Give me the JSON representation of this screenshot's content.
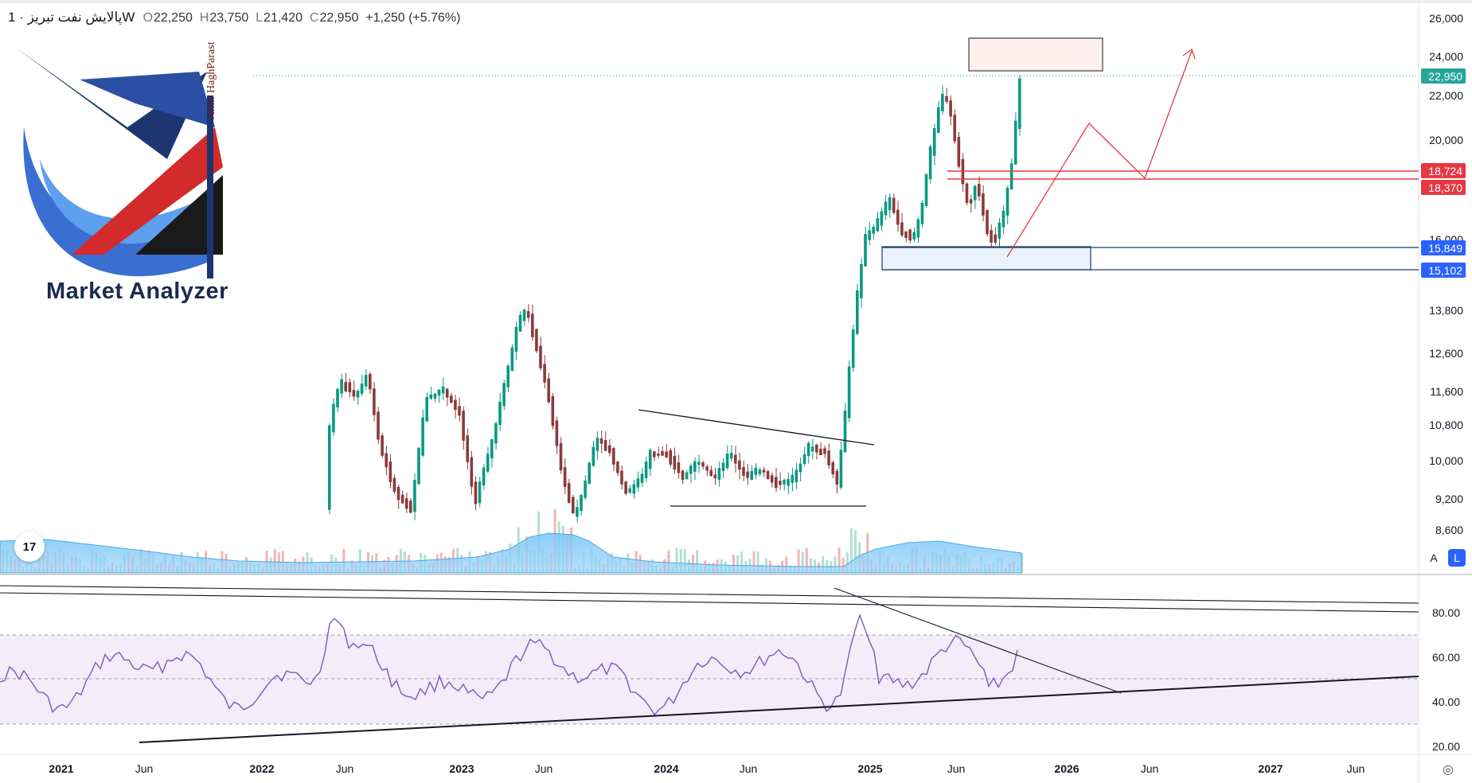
{
  "header": {
    "symbol": "پالایش نفت تبریز · 1W",
    "open_label": "O",
    "open": "22,250",
    "high_label": "H",
    "high": "23,750",
    "low_label": "L",
    "low": "21,420",
    "close_label": "C",
    "close": "22,950",
    "change": "+1,250 (+5.76%)"
  },
  "logo": {
    "title": "Market Analyzer",
    "signature": "Amir HaghParast"
  },
  "price_axis": {
    "ticks": [
      "26,000",
      "24,000",
      "22,000",
      "20,000",
      "16,000",
      "13,800",
      "12,600",
      "11,600",
      "10,800",
      "10,000",
      "9,200",
      "8,600"
    ],
    "last_price": "22,950",
    "markers": [
      {
        "label": "18,724",
        "color": "#e53844"
      },
      {
        "label": "18,370",
        "color": "#e53844"
      },
      {
        "label": "15,849",
        "color": "#2962ff"
      },
      {
        "label": "15,102",
        "color": "#2962ff"
      }
    ]
  },
  "rsi_axis": {
    "ticks": [
      "80.00",
      "60.00",
      "40.00",
      "20.00"
    ]
  },
  "time_axis": {
    "labels": [
      "2021",
      "Jun",
      "2022",
      "Jun",
      "2023",
      "Jun",
      "2024",
      "Jun",
      "2025",
      "Jun",
      "2026",
      "Jun",
      "2027",
      "Jun"
    ]
  },
  "controls": {
    "auto": "A",
    "log": "L",
    "tv_logo": "17"
  },
  "colors": {
    "up": "#089981",
    "down": "#8b3a3a",
    "rsi": "#7e57c2",
    "volume": "#4fb3f6",
    "red_line": "#e53844",
    "blue_zone": "#2962ff"
  }
}
